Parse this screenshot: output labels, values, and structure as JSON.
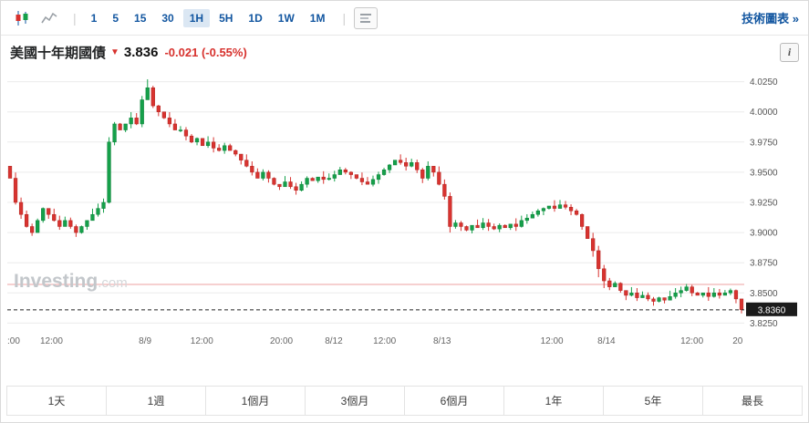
{
  "toolbar": {
    "separator": "|",
    "intervals": [
      "1",
      "5",
      "15",
      "30",
      "1H",
      "5H",
      "1D",
      "1W",
      "1M"
    ],
    "selected_interval": "1H",
    "link": "技術圖表 »"
  },
  "quote": {
    "name": "美國十年期國債",
    "arrow": "▼",
    "price": "3.836",
    "change": "-0.021 (-0.55%)",
    "info_icon": "i"
  },
  "watermark": {
    "main": "Investing",
    "suffix": ".com"
  },
  "ranges": [
    "1天",
    "1週",
    "1個月",
    "3個月",
    "6個月",
    "1年",
    "5年",
    "最長"
  ],
  "chart_data": {
    "type": "candlestick",
    "title": "美國十年期國債 1H",
    "price_axis": {
      "min": 3.82,
      "max": 4.03,
      "ticks": [
        4.025,
        4.0,
        3.975,
        3.95,
        3.925,
        3.9,
        3.875,
        3.85,
        3.825
      ]
    },
    "x_ticks": [
      {
        "label": ":00",
        "pos": 0.0
      },
      {
        "label": "12:00",
        "pos": 0.06
      },
      {
        "label": "8/9",
        "pos": 0.187
      },
      {
        "label": "12:00",
        "pos": 0.264
      },
      {
        "label": "20:00",
        "pos": 0.372
      },
      {
        "label": "8/12",
        "pos": 0.443
      },
      {
        "label": "12:00",
        "pos": 0.512
      },
      {
        "label": "8/13",
        "pos": 0.59
      },
      {
        "label": "12:00",
        "pos": 0.739
      },
      {
        "label": "8/14",
        "pos": 0.813
      },
      {
        "label": "12:00",
        "pos": 0.929
      },
      {
        "label": "20",
        "pos": 0.998
      }
    ],
    "last_price": 3.836,
    "last_price_label": "3.8360",
    "prev_close": 3.857,
    "open_rule": "previous_close",
    "first_open": 3.955,
    "closes": [
      3.945,
      3.925,
      3.915,
      3.905,
      3.9,
      3.91,
      3.92,
      3.915,
      3.91,
      3.905,
      3.91,
      3.905,
      3.9,
      3.905,
      3.91,
      3.915,
      3.92,
      3.925,
      3.975,
      3.99,
      3.985,
      3.99,
      3.995,
      3.99,
      4.01,
      4.02,
      4.005,
      4.0,
      3.995,
      3.99,
      3.985,
      3.985,
      3.98,
      3.975,
      3.978,
      3.972,
      3.975,
      3.97,
      3.968,
      3.972,
      3.968,
      3.965,
      3.96,
      3.955,
      3.95,
      3.945,
      3.95,
      3.945,
      3.94,
      3.938,
      3.942,
      3.938,
      3.935,
      3.94,
      3.945,
      3.943,
      3.946,
      3.944,
      3.945,
      3.948,
      3.952,
      3.95,
      3.948,
      3.945,
      3.942,
      3.94,
      3.944,
      3.948,
      3.952,
      3.956,
      3.96,
      3.958,
      3.955,
      3.958,
      3.952,
      3.945,
      3.955,
      3.95,
      3.94,
      3.93,
      3.905,
      3.908,
      3.905,
      3.902,
      3.906,
      3.904,
      3.908,
      3.905,
      3.903,
      3.906,
      3.904,
      3.907,
      3.905,
      3.91,
      3.912,
      3.915,
      3.918,
      3.92,
      3.922,
      3.92,
      3.923,
      3.921,
      3.918,
      3.915,
      3.905,
      3.895,
      3.885,
      3.87,
      3.86,
      3.855,
      3.858,
      3.852,
      3.848,
      3.85,
      3.846,
      3.848,
      3.845,
      3.843,
      3.846,
      3.844,
      3.847,
      3.85,
      3.852,
      3.855,
      3.85,
      3.848,
      3.85,
      3.847,
      3.85,
      3.848,
      3.85,
      3.852,
      3.845,
      3.836
    ],
    "wick_overrides": {
      "18": {
        "h": 0.004
      },
      "25": {
        "h": 0.007
      },
      "75": {
        "l": 0.004
      },
      "76": {
        "h": 0.004
      },
      "80": {
        "l": 0.005
      },
      "106": {
        "l": 0.005
      },
      "107": {
        "l": 0.007
      },
      "108": {
        "l": 0.006
      },
      "112": {
        "l": 0.004
      },
      "133": {
        "l": 0.003
      }
    },
    "colors": {
      "up": "#15a04a",
      "down": "#d83330",
      "up_border": "#0c8038",
      "down_border": "#b1241f",
      "grid": "#ececec",
      "last_line": "#222222",
      "prev_close_line": "#eda2a2",
      "axis_text": "#555555"
    }
  }
}
